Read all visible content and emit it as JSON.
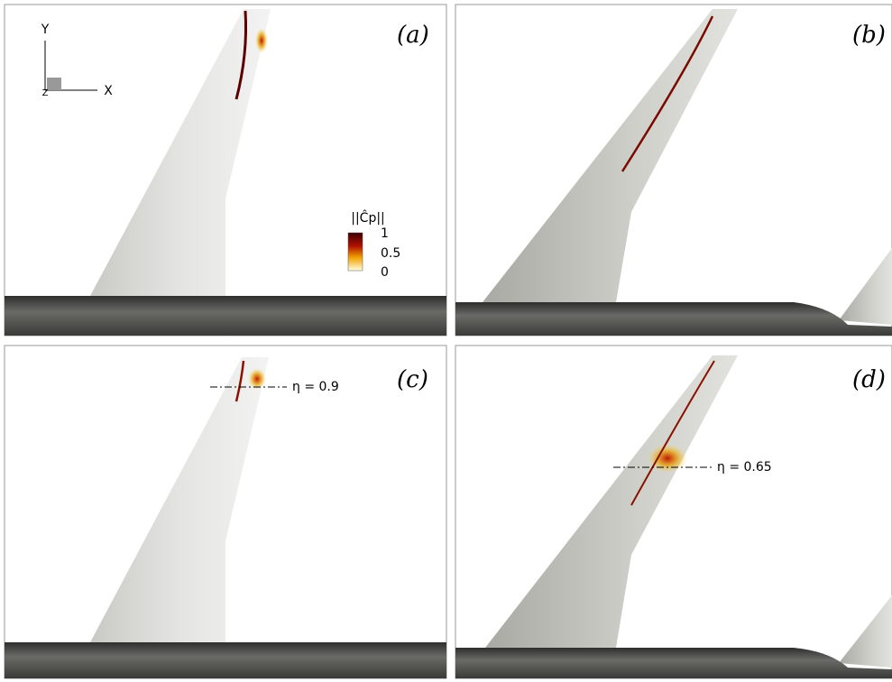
{
  "panels": [
    {
      "label": "(a)"
    },
    {
      "label": "(b)"
    },
    {
      "label": "(c)",
      "annotation": "η = 0.9"
    },
    {
      "label": "(d)",
      "annotation": "η = 0.65"
    }
  ],
  "axes_triad": {
    "y": "Y",
    "x": "X",
    "z": "Z"
  },
  "colorbar": {
    "title": "||Ĉp||",
    "ticks": [
      "1",
      "0.5",
      "0"
    ]
  }
}
